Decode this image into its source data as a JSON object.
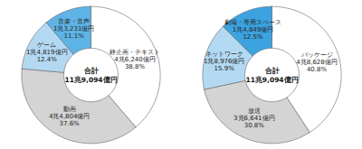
{
  "chart_data": [
    {
      "type": "pie",
      "categories": [
        "静止画・テキスト",
        "動画",
        "ゲーム",
        "音楽・音声"
      ],
      "values": [
        46240,
        44804,
        14819,
        13231
      ],
      "value_labels": [
        "4兆6,240億円",
        "4兆4,804億円",
        "1兆4,819億円",
        "1兆3,231億円"
      ],
      "percents": [
        38.8,
        37.6,
        12.4,
        11.1
      ],
      "percent_labels": [
        "38.8%",
        "37.6%",
        "12.4%",
        "11.1%"
      ],
      "colors": [
        "#ffffff",
        "#d4d4d4",
        "#b3d9f2",
        "#5fb4e6"
      ],
      "center_label": "合計",
      "total": 119094,
      "total_label": "11兆9,094億円",
      "data_labels": true
    },
    {
      "type": "pie",
      "categories": [
        "パッケージ",
        "放送",
        "ネットワーク",
        "劇場・専用スペース"
      ],
      "values": [
        48628,
        36641,
        18976,
        14849
      ],
      "value_labels": [
        "4兆8,628億円",
        "3兆6,641億円",
        "1兆8,976億円",
        "1兆4,849億円"
      ],
      "percents": [
        40.8,
        30.8,
        15.9,
        12.5
      ],
      "percent_labels": [
        "40.8%",
        "30.8%",
        "15.9%",
        "12.5%"
      ],
      "colors": [
        "#ffffff",
        "#d4d4d4",
        "#b3d9f2",
        "#3da2e0"
      ],
      "center_label": "合計",
      "total": 119094,
      "total_label": "11兆9,094億円",
      "data_labels": true
    }
  ]
}
